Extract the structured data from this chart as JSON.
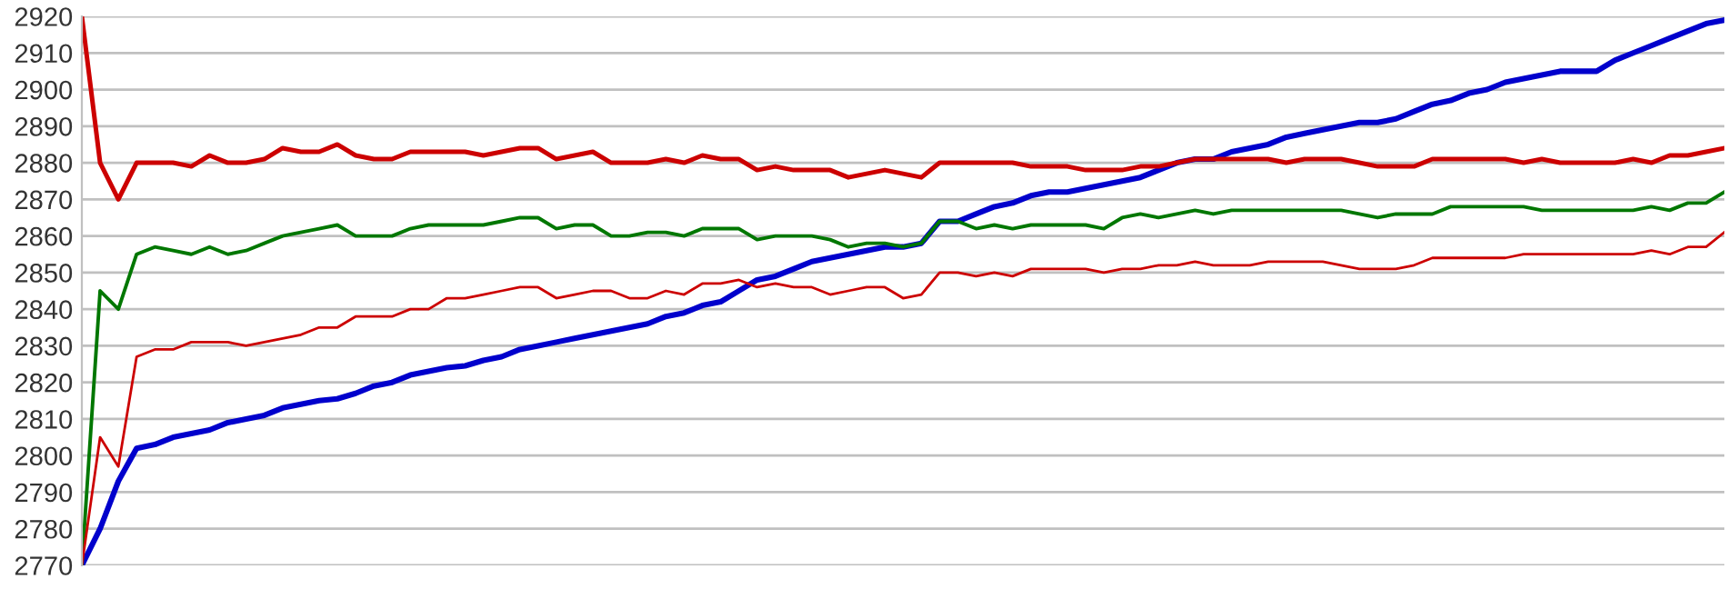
{
  "chart_data": {
    "type": "line",
    "categories": [
      null,
      null,
      null,
      null,
      null,
      null,
      null,
      null,
      null,
      null,
      null,
      null,
      null,
      null,
      null,
      null,
      null,
      null,
      null,
      null,
      null,
      null,
      null,
      null,
      null,
      null,
      null,
      null,
      null,
      null,
      null,
      null,
      null,
      null,
      null,
      null,
      null,
      null,
      null,
      null,
      null,
      null,
      null,
      null,
      null,
      null,
      null,
      null,
      null,
      null,
      null,
      null,
      null,
      null,
      null,
      null,
      null,
      null,
      null,
      null,
      null,
      null,
      null,
      null,
      null,
      null,
      null,
      null,
      null,
      null,
      null,
      null,
      null,
      null,
      null,
      null,
      null,
      null,
      null,
      null,
      null,
      null,
      null,
      null,
      null,
      null,
      null,
      null,
      null,
      null,
      null
    ],
    "series": [
      {
        "color": "#0000cc",
        "values": [
          2770,
          2780,
          2793,
          2802,
          2803,
          2805,
          2806,
          2807,
          2809,
          2810,
          2811,
          2813,
          2814,
          2815,
          2815.5,
          2817,
          2819,
          2820,
          2822,
          2823,
          2824,
          2824.5,
          2826,
          2827,
          2829,
          2830,
          2831,
          2832,
          2833,
          2834,
          2835,
          2836,
          2838,
          2839,
          2841,
          2842,
          2845,
          2848,
          2849,
          2851,
          2853,
          2854,
          2855,
          2856,
          2857,
          2857,
          2858,
          2864,
          2864,
          2866,
          2868,
          2869,
          2871,
          2872,
          2872,
          2873,
          2874,
          2875,
          2876,
          2878,
          2880,
          2881,
          2881,
          2883,
          2884,
          2885,
          2887,
          2888,
          2889,
          2890,
          2891,
          2891,
          2892,
          2894,
          2896,
          2897,
          2899,
          2900,
          2902,
          2903,
          2904,
          2905,
          2905,
          2905,
          2908,
          2910,
          2912,
          2914,
          2916,
          2918,
          2919
        ]
      },
      {
        "color": "#cc0000",
        "values": [
          2920,
          2880,
          2870,
          2880,
          2880,
          2880,
          2879,
          2882,
          2880,
          2880,
          2881,
          2884,
          2883,
          2883,
          2885,
          2882,
          2881,
          2881,
          2883,
          2883,
          2883,
          2883,
          2882,
          2883,
          2884,
          2884,
          2881,
          2882,
          2883,
          2880,
          2880,
          2880,
          2881,
          2880,
          2882,
          2881,
          2881,
          2878,
          2879,
          2878,
          2878,
          2878,
          2876,
          2877,
          2878,
          2877,
          2876,
          2880,
          2880,
          2880,
          2880,
          2880,
          2879,
          2879,
          2879,
          2878,
          2878,
          2878,
          2879,
          2879,
          2880,
          2881,
          2881,
          2881,
          2881,
          2881,
          2880,
          2881,
          2881,
          2881,
          2880,
          2879,
          2879,
          2879,
          2881,
          2881,
          2881,
          2881,
          2881,
          2880,
          2881,
          2880,
          2880,
          2880,
          2880,
          2881,
          2880,
          2882,
          2882,
          2883,
          2884
        ]
      },
      {
        "color": "#007700",
        "values": [
          2770,
          2845,
          2840,
          2855,
          2857,
          2856,
          2855,
          2857,
          2855,
          2856,
          2858,
          2860,
          2861,
          2862,
          2863,
          2860,
          2860,
          2860,
          2862,
          2863,
          2863,
          2863,
          2863,
          2864,
          2865,
          2865,
          2862,
          2863,
          2863,
          2860,
          2860,
          2861,
          2861,
          2860,
          2862,
          2862,
          2862,
          2859,
          2860,
          2860,
          2860,
          2859,
          2857,
          2858,
          2858,
          2857,
          2858,
          2864,
          2864,
          2862,
          2863,
          2862,
          2863,
          2863,
          2863,
          2863,
          2862,
          2865,
          2866,
          2865,
          2866,
          2867,
          2866,
          2867,
          2867,
          2867,
          2867,
          2867,
          2867,
          2867,
          2866,
          2865,
          2866,
          2866,
          2866,
          2868,
          2868,
          2868,
          2868,
          2868,
          2867,
          2867,
          2867,
          2867,
          2867,
          2867,
          2868,
          2867,
          2869,
          2869,
          2872
        ]
      },
      {
        "color": "#cc0000",
        "values": [
          2770,
          2805,
          2797,
          2827,
          2829,
          2829,
          2831,
          2831,
          2831,
          2830,
          2831,
          2832,
          2833,
          2835,
          2835,
          2838,
          2838,
          2838,
          2840,
          2840,
          2843,
          2843,
          2844,
          2845,
          2846,
          2846,
          2843,
          2844,
          2845,
          2845,
          2843,
          2843,
          2845,
          2844,
          2847,
          2847,
          2848,
          2846,
          2847,
          2846,
          2846,
          2844,
          2845,
          2846,
          2846,
          2843,
          2844,
          2850,
          2850,
          2849,
          2850,
          2849,
          2851,
          2851,
          2851,
          2851,
          2850,
          2851,
          2851,
          2852,
          2852,
          2853,
          2852,
          2852,
          2852,
          2853,
          2853,
          2853,
          2853,
          2852,
          2851,
          2851,
          2851,
          2852,
          2854,
          2854,
          2854,
          2854,
          2854,
          2855,
          2855,
          2855,
          2855,
          2855,
          2855,
          2855,
          2856,
          2855,
          2857,
          2857,
          2861
        ]
      }
    ],
    "ylim": [
      2770,
      2920
    ],
    "yticks": [
      2770,
      2780,
      2790,
      2800,
      2810,
      2820,
      2830,
      2840,
      2850,
      2860,
      2870,
      2880,
      2890,
      2900,
      2910,
      2920
    ],
    "grid": "y",
    "tick_labels": "y",
    "legend": false,
    "marker": "none",
    "line_style": "solid"
  }
}
